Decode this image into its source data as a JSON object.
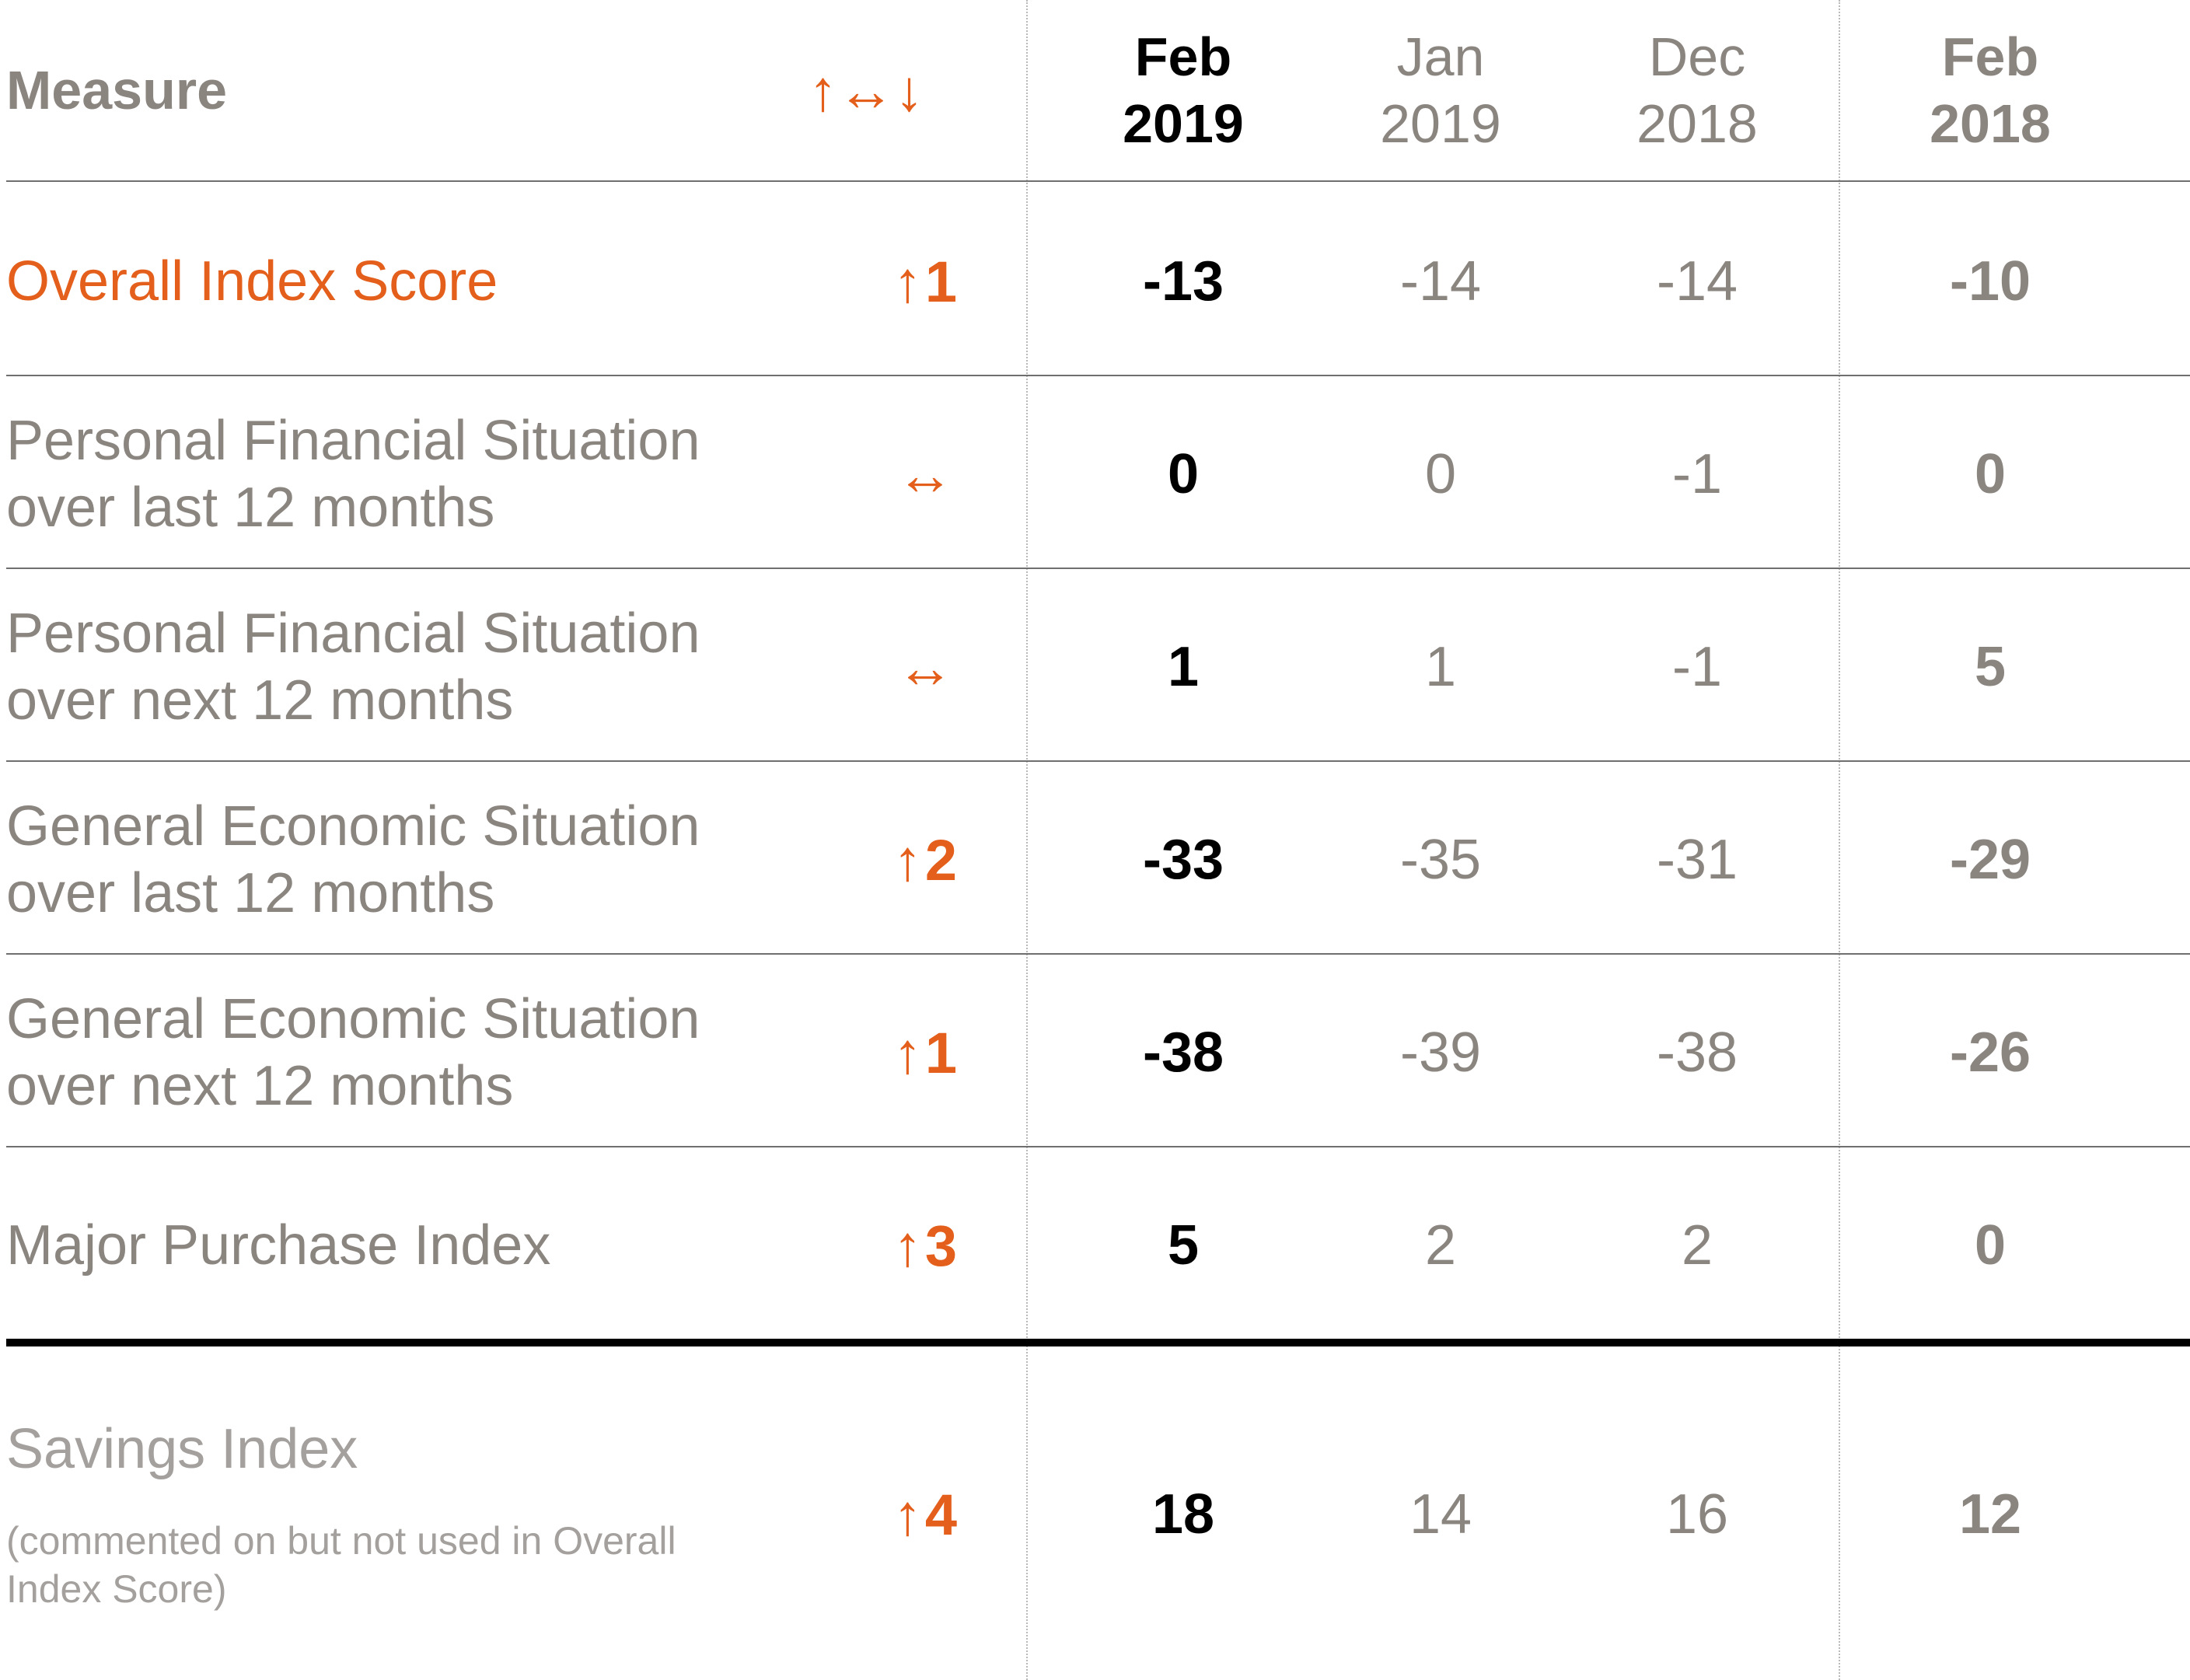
{
  "chart_data": {
    "type": "table",
    "header": {
      "measure": "Measure",
      "change": "↑↔↓",
      "periods": [
        {
          "line1": "Feb",
          "line2": "2019",
          "style": "current"
        },
        {
          "line1": "Jan",
          "line2": "2019",
          "style": "previous"
        },
        {
          "line1": "Dec",
          "line2": "2018",
          "style": "previous"
        },
        {
          "line1": "Feb",
          "line2": "2018",
          "style": "last_year"
        }
      ]
    },
    "rows": [
      {
        "label": [
          "Overall Index Score"
        ],
        "note": "",
        "arrow": "↑",
        "change": "1",
        "values": [
          "-13",
          "-14",
          "-14",
          "-10"
        ],
        "style": "overall"
      },
      {
        "label": [
          "Personal Financial Situation",
          "over last 12 months"
        ],
        "note": "",
        "arrow": "↔",
        "change": "",
        "values": [
          "0",
          "0",
          "-1",
          "0"
        ],
        "style": "normal"
      },
      {
        "label": [
          "Personal Financial Situation",
          "over next 12 months"
        ],
        "note": "",
        "arrow": "↔",
        "change": "",
        "values": [
          "1",
          "1",
          "-1",
          "5"
        ],
        "style": "normal"
      },
      {
        "label": [
          "General Economic Situation",
          "over last 12 months"
        ],
        "note": "",
        "arrow": "↑",
        "change": "2",
        "values": [
          "-33",
          "-35",
          "-31",
          "-29"
        ],
        "style": "normal"
      },
      {
        "label": [
          "General Economic Situation",
          "over next 12 months"
        ],
        "note": "",
        "arrow": "↑",
        "change": "1",
        "values": [
          "-38",
          "-39",
          "-38",
          "-26"
        ],
        "style": "normal"
      },
      {
        "label": [
          "Major Purchase Index"
        ],
        "note": "",
        "arrow": "↑",
        "change": "3",
        "values": [
          "5",
          "2",
          "2",
          "0"
        ],
        "style": "normal"
      },
      {
        "label": [
          "Savings Index"
        ],
        "note": "(commented on but not used in Overall Index Score)",
        "arrow": "↑",
        "change": "4",
        "values": [
          "18",
          "14",
          "16",
          "12"
        ],
        "style": "savings"
      }
    ],
    "colors": {
      "accent": "#e35f1b",
      "current": "#000000",
      "muted": "#8b8580",
      "light": "#a3a09d",
      "rule": "#6f6f6f",
      "divider": "#b9b9b9"
    }
  }
}
